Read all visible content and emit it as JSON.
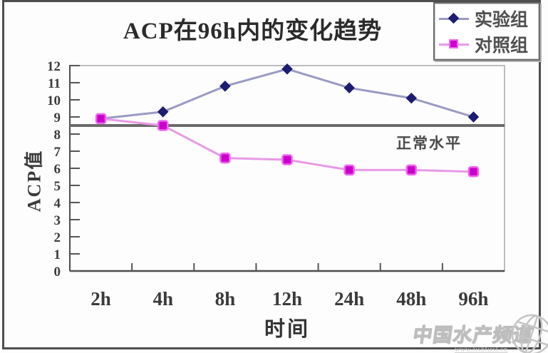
{
  "figure": {
    "watermark": {
      "name": "中国水产频道",
      "url": "www.fishfirst.cn"
    }
  },
  "chart_data": {
    "type": "line",
    "title": "ACP在96h内的变化趋势",
    "xlabel": "时间",
    "ylabel": "ACP值",
    "categories": [
      "2h",
      "4h",
      "8h",
      "12h",
      "24h",
      "48h",
      "96h"
    ],
    "series": [
      {
        "name": "实验组",
        "marker": "diamond",
        "line_color": "#9a9ac4",
        "marker_color": "#1c1c70",
        "values": [
          8.9,
          9.3,
          10.8,
          11.8,
          10.7,
          10.1,
          9.0
        ]
      },
      {
        "name": "对照组",
        "marker": "square",
        "line_color": "#e79ae7",
        "marker_color": "#cc00cc",
        "values": [
          8.9,
          8.5,
          6.6,
          6.5,
          5.9,
          5.9,
          5.8
        ]
      }
    ],
    "ylim": [
      0,
      12
    ],
    "ytick_step": 1,
    "reference_line": {
      "value": 8.5,
      "label": "正常水平",
      "color": "#6b6b6b"
    },
    "legend_position": "top-right",
    "grid": false
  }
}
